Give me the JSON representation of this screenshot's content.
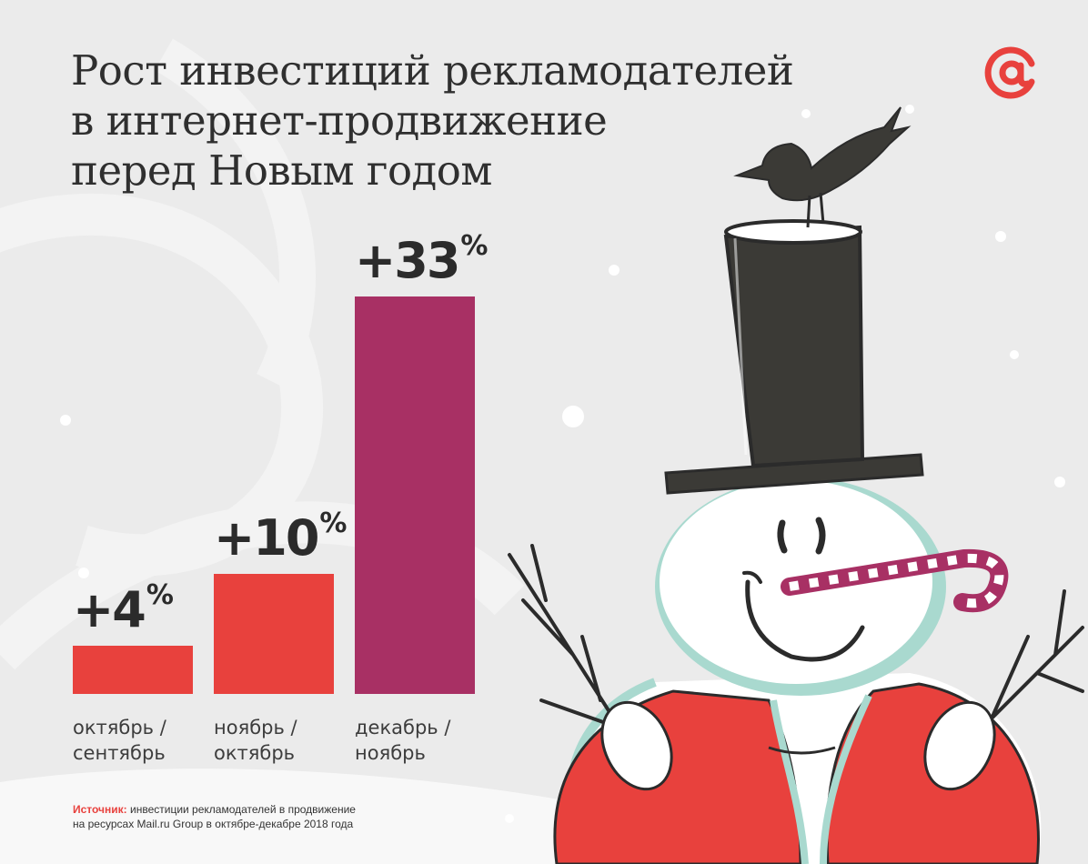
{
  "title_lines": [
    "Рост инвестиций рекламодателей",
    "в интернет-продвижение",
    "перед Новым годом"
  ],
  "logo": {
    "icon": "at-sign-icon",
    "color": "#e8413d"
  },
  "colors": {
    "bar_red": "#e8413d",
    "bar_purple": "#a83064",
    "background": "#ebebeb",
    "text": "#2f2f2f"
  },
  "chart_data": {
    "type": "bar",
    "categories": [
      "октябрь / сентябрь",
      "ноябрь / октябрь",
      "декабрь / ноябрь"
    ],
    "category_lines": [
      [
        "октябрь /",
        "сентябрь"
      ],
      [
        "ноябрь /",
        "октябрь"
      ],
      [
        "декабрь /",
        "ноябрь"
      ]
    ],
    "values": [
      4,
      10,
      33
    ],
    "value_labels": [
      "+4",
      "+10",
      "+33"
    ],
    "unit": "%",
    "bar_colors": [
      "#e8413d",
      "#e8413d",
      "#a83064"
    ],
    "title": "Рост инвестиций рекламодателей в интернет-продвижение перед Новым годом",
    "xlabel": "",
    "ylabel": "",
    "ylim": [
      0,
      33
    ],
    "grid": false,
    "legend": "none"
  },
  "source": {
    "label": "Источник:",
    "line1": "инвестиции рекламодателей в продвижение",
    "line2": "на ресурсах Mail.ru Group в октябре-декабре 2018 года"
  },
  "illustration": "snowman-illustration"
}
